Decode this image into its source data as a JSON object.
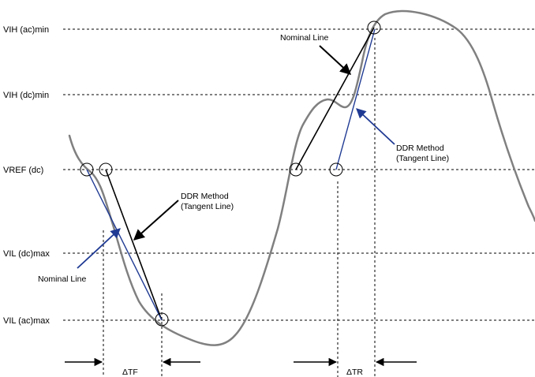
{
  "levels": {
    "vih_ac_min": "VIH (ac)min",
    "vih_dc_min": "VIH (dc)min",
    "vref_dc": "VREF (dc)",
    "vil_dc_max": "VIL (dc)max",
    "vil_ac_max": "VIL (ac)max"
  },
  "annotations": {
    "nominal_line_rise": "Nominal Line",
    "nominal_line_fall": "Nominal Line",
    "ddr_rise_line1": "DDR Method",
    "ddr_rise_line2": "(Tangent Line)",
    "ddr_fall_line1": "DDR Method",
    "ddr_fall_line2": "(Tangent Line)"
  },
  "intervals": {
    "fall": "ΔTF",
    "rise": "ΔTR"
  },
  "colors": {
    "waveform": "#808080",
    "tangent": "#1f3a93",
    "nominal": "#000000",
    "grid": "#000000"
  }
}
